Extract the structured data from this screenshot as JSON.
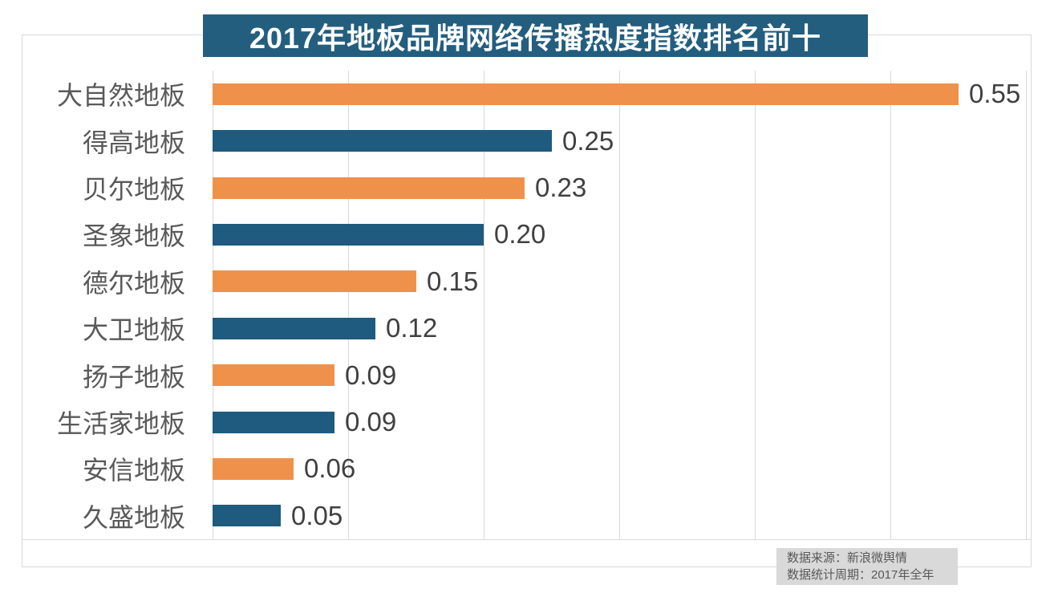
{
  "title": {
    "text": "2017年地板品牌网络传播热度指数排名前十"
  },
  "source_note": {
    "line1": "数据来源：新浪微舆情",
    "line2": "数据统计周期：2017年全年"
  },
  "colors": {
    "banner_bg": "#235E7F",
    "title_text": "#FFFFFF",
    "bar_orange": "#F0914B",
    "bar_blue": "#1F5B7E",
    "grid": "#D9D9D9",
    "category_text": "#595959",
    "value_text": "#404040",
    "note_bg": "#D9D9D9",
    "note_text": "#595959",
    "frame_border": "#D9D9D9"
  },
  "chart_data": {
    "type": "bar",
    "orientation": "horizontal",
    "title": "2017年地板品牌网络传播热度指数排名前十",
    "categories": [
      "大自然地板",
      "得高地板",
      "贝尔地板",
      "圣象地板",
      "德尔地板",
      "大卫地板",
      "扬子地板",
      "生活家地板",
      "安信地板",
      "久盛地板"
    ],
    "values": [
      0.55,
      0.25,
      0.23,
      0.2,
      0.15,
      0.12,
      0.09,
      0.09,
      0.06,
      0.05
    ],
    "value_labels": [
      "0.55",
      "0.25",
      "0.23",
      "0.20",
      "0.15",
      "0.12",
      "0.09",
      "0.09",
      "0.06",
      "0.05"
    ],
    "xlabel": "",
    "ylabel": "",
    "xlim": [
      0,
      0.6
    ],
    "x_gridline_step": 0.1,
    "grid": true,
    "legend": "none",
    "bar_colors_alternate": [
      "#F0914B",
      "#1F5B7E"
    ]
  }
}
